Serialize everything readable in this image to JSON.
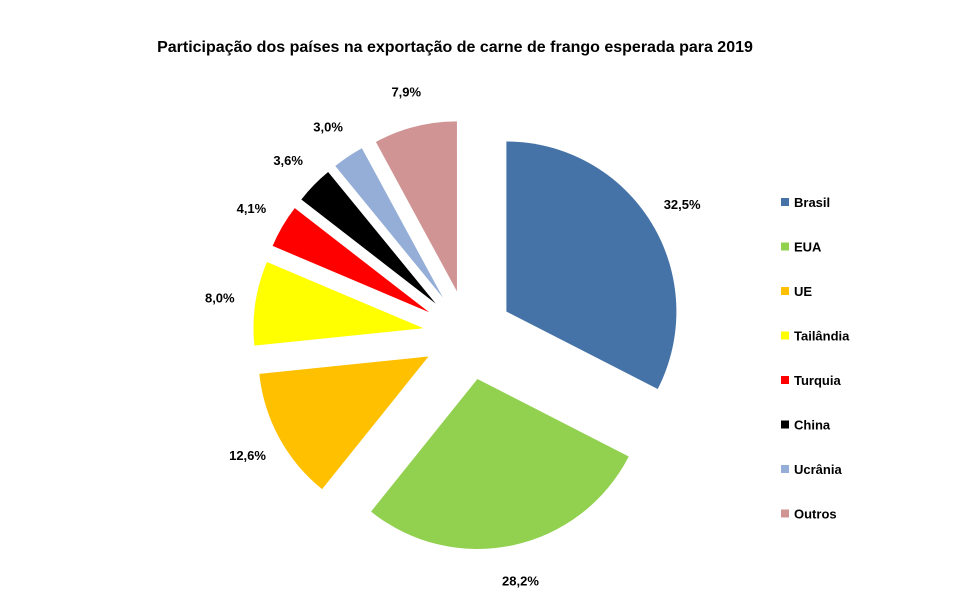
{
  "chart_data": {
    "type": "pie",
    "title": "Participação dos países na exportação de carne de frango esperada para 2019",
    "categories": [
      "Brasil",
      "EUA",
      "UE",
      "Tailândia",
      "Turquia",
      "China",
      "Ucrânia",
      "Outros"
    ],
    "values": [
      32.5,
      28.2,
      12.6,
      8.0,
      4.1,
      3.6,
      3.0,
      7.9
    ],
    "data_labels": [
      "32,5%",
      "28,2%",
      "12,6%",
      "8,0%",
      "4,1%",
      "3,6%",
      "3,0%",
      "7,9%"
    ],
    "colors": [
      "#4572A7",
      "#92D050",
      "#FFC000",
      "#FFFF00",
      "#FF0000",
      "#000000",
      "#95AED7",
      "#D09494"
    ],
    "exploded": true,
    "legend_position": "right"
  }
}
